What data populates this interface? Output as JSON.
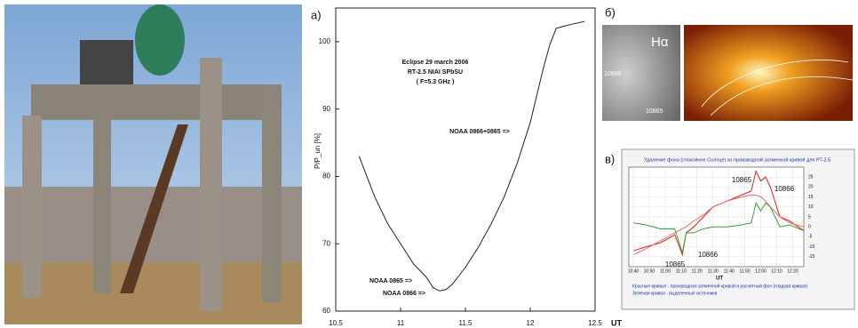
{
  "panels": {
    "a_label": "а)",
    "b_label": "б)",
    "v_label": "в)",
    "solar_images": {
      "left_label": "Hα",
      "left_region_1": "10866",
      "left_region_2": "10865"
    }
  },
  "chart_data": [
    {
      "type": "line",
      "xlabel": "UT",
      "ylabel": "P/P_un [%]",
      "annotations": [
        "Eclipse 29 march 2006",
        "RT-2.5 NIAI SPbSU",
        "( F=5.3 GHz )",
        "NOAA 0866+0865 =>",
        "NOAA 0865 =>",
        "NOAA 0866 =>"
      ],
      "x": [
        10.68,
        10.7,
        10.8,
        10.9,
        11.0,
        11.1,
        11.15,
        11.2,
        11.25,
        11.3,
        11.35,
        11.4,
        11.5,
        11.6,
        11.7,
        11.8,
        11.9,
        12.0,
        12.05,
        12.1,
        12.15,
        12.2,
        12.3,
        12.42
      ],
      "series": [
        {
          "color": "#222222",
          "values": [
            83,
            82,
            77,
            73,
            70,
            67,
            66,
            65,
            63.5,
            63,
            63.2,
            64,
            66.5,
            69.5,
            73,
            77,
            82,
            88,
            92,
            96,
            99.5,
            102,
            102.5,
            103
          ]
        }
      ],
      "xlim": [
        10.5,
        12.5
      ],
      "xticks": [
        10.5,
        11,
        11.5,
        12,
        12.5
      ],
      "ylim": [
        60,
        105
      ],
      "yticks": [
        60,
        70,
        80,
        90,
        100
      ]
    },
    {
      "type": "line",
      "title": "Удаление фона (спокойное Солнце) из производной затменной кривой для РТ-2.5",
      "xlabel": "UT",
      "annotations": [
        "10865",
        "10866",
        "10865",
        "10866"
      ],
      "notes": [
        "Красные кривые - производная затменной кривой и расчетный фон (гладкая кривая)",
        "Зеленая кривая - выделенные источники"
      ],
      "x": [
        10.67,
        10.8,
        10.95,
        11.1,
        11.18,
        11.22,
        11.3,
        11.4,
        11.5,
        11.65,
        11.8,
        11.9,
        11.95,
        12.0,
        12.05,
        12.1,
        12.2,
        12.3,
        12.45
      ],
      "series": [
        {
          "color": "#e02020",
          "values": [
            -12,
            -10,
            -8,
            -4,
            -14,
            -3,
            0,
            5,
            10,
            13,
            16,
            18,
            28,
            23,
            25,
            20,
            5,
            3,
            -2
          ]
        },
        {
          "color": "#f06a6a",
          "values": [
            -14,
            -11,
            -7,
            -3,
            -1,
            0,
            3,
            6,
            10,
            13,
            15,
            16,
            16,
            15,
            13,
            10,
            5,
            2,
            0
          ]
        },
        {
          "color": "#3a9a3a",
          "values": [
            2,
            1,
            -1,
            -1,
            -13,
            -3,
            -3,
            -1,
            0,
            0,
            1,
            2,
            12,
            8,
            12,
            10,
            0,
            1,
            -2
          ]
        }
      ],
      "xlim": [
        10.62,
        12.45
      ],
      "xticks": [
        {
          "value": 10.667,
          "label": "10:40"
        },
        {
          "value": 10.833,
          "label": "10:50"
        },
        {
          "value": 11,
          "label": "11:00"
        },
        {
          "value": 11.167,
          "label": "11:10"
        },
        {
          "value": 11.333,
          "label": "11:20"
        },
        {
          "value": 11.5,
          "label": "11:30"
        },
        {
          "value": 11.667,
          "label": "11:40"
        },
        {
          "value": 11.833,
          "label": "11:50"
        },
        {
          "value": 12,
          "label": "12:00"
        },
        {
          "value": 12.167,
          "label": "12:10"
        },
        {
          "value": 12.333,
          "label": "12:20"
        }
      ],
      "ylim": [
        -20,
        30
      ],
      "yticks": [
        -15,
        -10,
        -5,
        0,
        5,
        10,
        15,
        20,
        25
      ],
      "grid": true
    }
  ]
}
